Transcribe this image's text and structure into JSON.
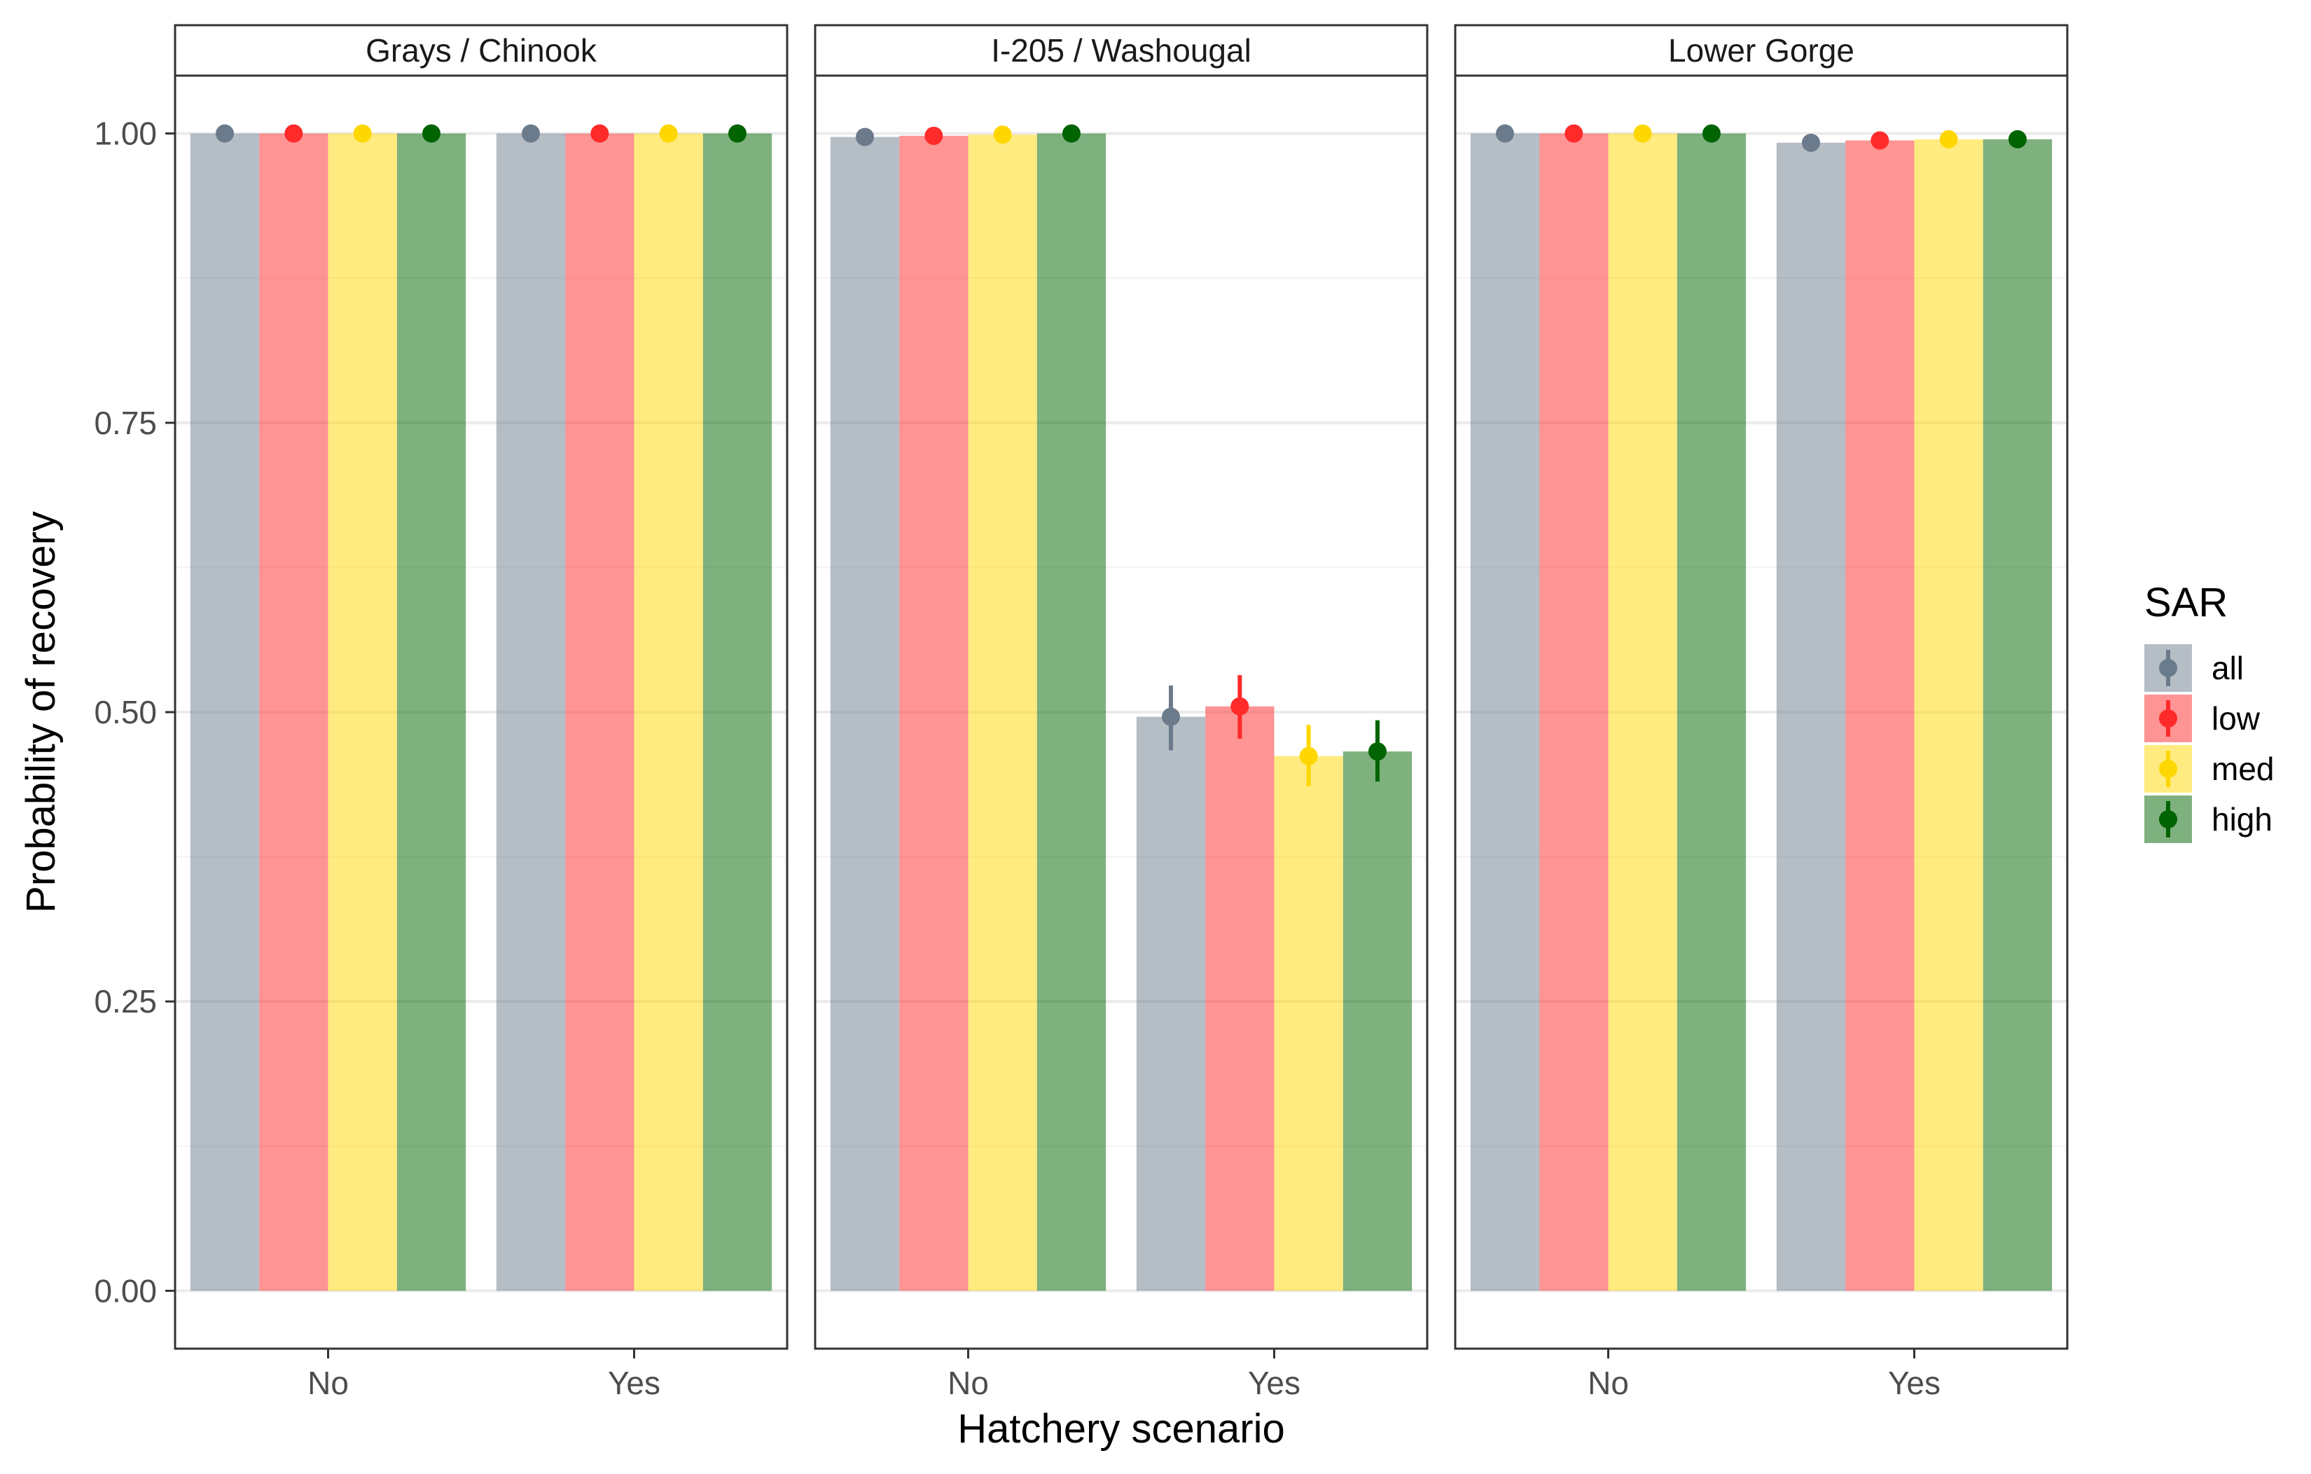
{
  "chart_data": {
    "type": "bar",
    "facets": [
      "Grays / Chinook",
      "I-205 / Washougal",
      "Lower Gorge"
    ],
    "categories": [
      "No",
      "Yes"
    ],
    "xlabel": "Hatchery scenario",
    "ylabel": "Probability of recovery",
    "ylim": [
      -0.05,
      1.05
    ],
    "yticks": [
      0.0,
      0.25,
      0.5,
      0.75,
      1.0
    ],
    "ytick_labels": [
      "0.00",
      "0.25",
      "0.50",
      "0.75",
      "1.00"
    ],
    "grid": true,
    "legend": {
      "title": "SAR",
      "position": "right",
      "entries": [
        "all",
        "low",
        "med",
        "high"
      ]
    },
    "colors": {
      "all": "#6b7b8c",
      "low": "#ff2a2a",
      "med": "#ffd700",
      "high": "#006400"
    },
    "panels": [
      {
        "facet": "Grays / Chinook",
        "series": [
          {
            "name": "all",
            "values": [
              1.0,
              1.0
            ],
            "ci_low": [
              1.0,
              1.0
            ],
            "ci_high": [
              1.0,
              1.0
            ]
          },
          {
            "name": "low",
            "values": [
              1.0,
              1.0
            ],
            "ci_low": [
              1.0,
              1.0
            ],
            "ci_high": [
              1.0,
              1.0
            ]
          },
          {
            "name": "med",
            "values": [
              1.0,
              1.0
            ],
            "ci_low": [
              1.0,
              1.0
            ],
            "ci_high": [
              1.0,
              1.0
            ]
          },
          {
            "name": "high",
            "values": [
              1.0,
              1.0
            ],
            "ci_low": [
              1.0,
              1.0
            ],
            "ci_high": [
              1.0,
              1.0
            ]
          }
        ]
      },
      {
        "facet": "I-205 / Washougal",
        "series": [
          {
            "name": "all",
            "values": [
              0.997,
              0.496
            ],
            "ci_low": [
              0.997,
              0.467
            ],
            "ci_high": [
              0.997,
              0.523
            ]
          },
          {
            "name": "low",
            "values": [
              0.998,
              0.505
            ],
            "ci_low": [
              0.998,
              0.477
            ],
            "ci_high": [
              0.998,
              0.532
            ]
          },
          {
            "name": "med",
            "values": [
              0.999,
              0.462
            ],
            "ci_low": [
              0.999,
              0.436
            ],
            "ci_high": [
              0.999,
              0.489
            ]
          },
          {
            "name": "high",
            "values": [
              1.0,
              0.466
            ],
            "ci_low": [
              1.0,
              0.44
            ],
            "ci_high": [
              1.0,
              0.493
            ]
          }
        ]
      },
      {
        "facet": "Lower Gorge",
        "series": [
          {
            "name": "all",
            "values": [
              1.0,
              0.992
            ],
            "ci_low": [
              1.0,
              0.992
            ],
            "ci_high": [
              1.0,
              0.992
            ]
          },
          {
            "name": "low",
            "values": [
              1.0,
              0.994
            ],
            "ci_low": [
              1.0,
              0.994
            ],
            "ci_high": [
              1.0,
              0.994
            ]
          },
          {
            "name": "med",
            "values": [
              1.0,
              0.995
            ],
            "ci_low": [
              1.0,
              0.995
            ],
            "ci_high": [
              1.0,
              0.995
            ]
          },
          {
            "name": "high",
            "values": [
              1.0,
              0.995
            ],
            "ci_low": [
              1.0,
              0.995
            ],
            "ci_high": [
              1.0,
              0.995
            ]
          }
        ]
      }
    ]
  }
}
